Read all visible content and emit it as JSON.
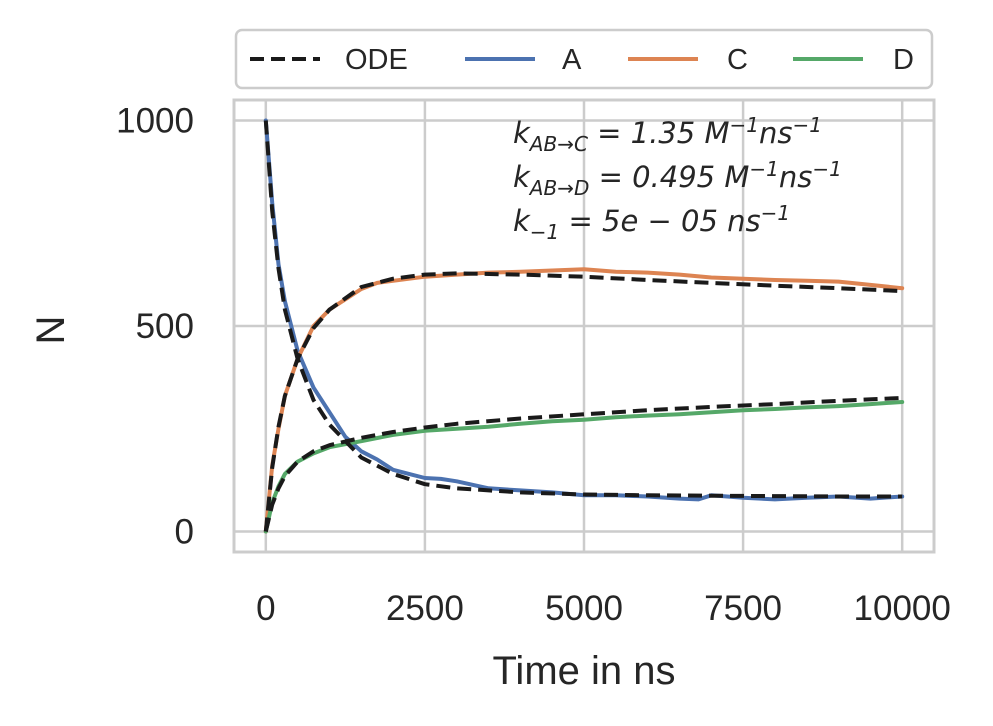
{
  "chart_data": {
    "type": "line",
    "xlabel": "Time in ns",
    "ylabel": "N",
    "xlim": [
      -500,
      10500
    ],
    "ylim": [
      -50,
      1050
    ],
    "xticks": [
      0,
      2500,
      5000,
      7500,
      10000
    ],
    "xtick_labels": [
      "0",
      "2500",
      "5000",
      "7500",
      "10000"
    ],
    "yticks": [
      0,
      500,
      1000
    ],
    "ytick_labels": [
      "0",
      "500",
      "1000"
    ],
    "grid": true,
    "legend_position": "top, above plot",
    "legend": [
      "ODE",
      "A",
      "C",
      "D"
    ],
    "annotations": [
      {
        "base": "k",
        "sub": "AB→C",
        "rest": " = 1.35 M",
        "sup1": "−1",
        "rest2": "ns",
        "sup2": "−1"
      },
      {
        "base": "k",
        "sub": "AB→D",
        "rest": " = 0.495 M",
        "sup1": "−1",
        "rest2": "ns",
        "sup2": "−1"
      },
      {
        "base": "k",
        "sub": "−1",
        "rest": " = 5e − 05 ns",
        "sup1": "−1",
        "rest2": "",
        "sup2": ""
      }
    ],
    "series": [
      {
        "name": "ODE",
        "style": "dashed",
        "color": "#1a1a1a",
        "lines": [
          {
            "x": [
              0,
              100,
              200,
              300,
              500,
              750,
              1000,
              1500,
              2000,
              2500,
              3000,
              4000,
              5000,
              6000,
              7000,
              8000,
              9000,
              10000
            ],
            "y": [
              1000,
              780,
              640,
              540,
              420,
              320,
              260,
              180,
              140,
              115,
              105,
              95,
              90,
              88,
              87,
              86,
              85,
              85
            ]
          },
          {
            "x": [
              0,
              100,
              200,
              300,
              500,
              750,
              1000,
              1500,
              2000,
              2500,
              3000,
              4000,
              5000,
              6000,
              7000,
              8000,
              9000,
              10000
            ],
            "y": [
              0,
              155,
              255,
              330,
              420,
              495,
              540,
              595,
              615,
              625,
              628,
              625,
              620,
              612,
              605,
              598,
              592,
              585
            ]
          },
          {
            "x": [
              0,
              100,
              200,
              300,
              500,
              750,
              1000,
              1500,
              2000,
              2500,
              3000,
              4000,
              5000,
              6000,
              7000,
              8000,
              9000,
              10000
            ],
            "y": [
              0,
              65,
              105,
              135,
              170,
              195,
              210,
              228,
              242,
              253,
              262,
              275,
              285,
              295,
              303,
              310,
              318,
              325
            ]
          }
        ]
      },
      {
        "name": "A",
        "style": "solid",
        "color": "#4c72b0",
        "x": [
          0,
          100,
          200,
          300,
          500,
          750,
          1000,
          1250,
          1500,
          1750,
          2000,
          2250,
          2500,
          2750,
          3000,
          3500,
          4000,
          4500,
          5000,
          5500,
          6000,
          6500,
          6800,
          7000,
          7500,
          8000,
          8500,
          9000,
          9500,
          10000
        ],
        "y": [
          1000,
          800,
          650,
          560,
          440,
          350,
          290,
          230,
          195,
          175,
          150,
          140,
          130,
          128,
          122,
          105,
          100,
          95,
          88,
          88,
          85,
          80,
          78,
          88,
          82,
          78,
          82,
          85,
          80,
          85
        ]
      },
      {
        "name": "C",
        "style": "solid",
        "color": "#dd8452",
        "x": [
          0,
          100,
          200,
          300,
          500,
          750,
          1000,
          1250,
          1500,
          1750,
          2000,
          2500,
          3000,
          3500,
          4000,
          4500,
          5000,
          5500,
          6000,
          6500,
          7000,
          7500,
          8000,
          8500,
          9000,
          9500,
          10000
        ],
        "y": [
          0,
          160,
          250,
          330,
          420,
          500,
          540,
          565,
          590,
          605,
          610,
          620,
          625,
          630,
          632,
          635,
          638,
          632,
          630,
          625,
          618,
          615,
          612,
          610,
          608,
          600,
          592
        ]
      },
      {
        "name": "D",
        "style": "solid",
        "color": "#55a868",
        "x": [
          0,
          100,
          200,
          300,
          500,
          750,
          1000,
          1500,
          2000,
          2500,
          3000,
          3500,
          4000,
          4500,
          5000,
          5500,
          6000,
          6500,
          7000,
          7500,
          8000,
          8500,
          9000,
          9500,
          10000
        ],
        "y": [
          0,
          70,
          110,
          140,
          170,
          190,
          205,
          220,
          235,
          245,
          250,
          255,
          262,
          268,
          272,
          278,
          282,
          285,
          290,
          295,
          298,
          302,
          305,
          310,
          315
        ]
      }
    ]
  }
}
